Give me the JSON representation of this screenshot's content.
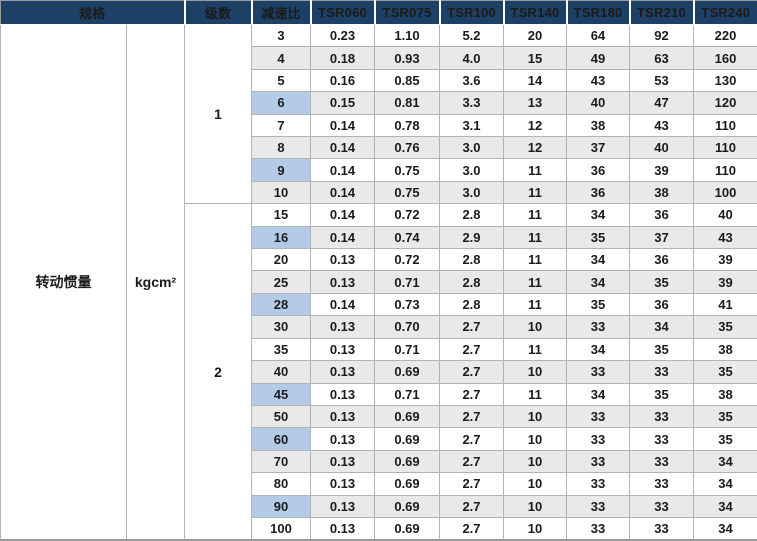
{
  "colors": {
    "header_bg": "#1d4166",
    "header_text": "#ffffff",
    "stripe_gray": "#e9e9e9",
    "highlight_blue": "#b4cbe7",
    "grid_line": "#b3b3b3",
    "body_text": "#1b1b1b"
  },
  "table": {
    "header": {
      "spec_label": "规格",
      "stage_label": "级数",
      "ratio_label": "减速比",
      "models": [
        "TSR060",
        "TSR075",
        "TSR100",
        "TSR140",
        "TSR180",
        "TSR210",
        "TSR240"
      ]
    },
    "spec_name": "转动惯量",
    "spec_unit": "kgcm²",
    "stages": [
      {
        "stage": "1",
        "rows": [
          {
            "ratio": "3",
            "highlight": false,
            "values": [
              "0.23",
              "1.10",
              "5.2",
              "20",
              "64",
              "92",
              "220"
            ]
          },
          {
            "ratio": "4",
            "highlight": false,
            "values": [
              "0.18",
              "0.93",
              "4.0",
              "15",
              "49",
              "63",
              "160"
            ]
          },
          {
            "ratio": "5",
            "highlight": false,
            "values": [
              "0.16",
              "0.85",
              "3.6",
              "14",
              "43",
              "53",
              "130"
            ]
          },
          {
            "ratio": "6",
            "highlight": true,
            "values": [
              "0.15",
              "0.81",
              "3.3",
              "13",
              "40",
              "47",
              "120"
            ]
          },
          {
            "ratio": "7",
            "highlight": false,
            "values": [
              "0.14",
              "0.78",
              "3.1",
              "12",
              "38",
              "43",
              "110"
            ]
          },
          {
            "ratio": "8",
            "highlight": false,
            "values": [
              "0.14",
              "0.76",
              "3.0",
              "12",
              "37",
              "40",
              "110"
            ]
          },
          {
            "ratio": "9",
            "highlight": true,
            "values": [
              "0.14",
              "0.75",
              "3.0",
              "11",
              "36",
              "39",
              "110"
            ]
          },
          {
            "ratio": "10",
            "highlight": false,
            "values": [
              "0.14",
              "0.75",
              "3.0",
              "11",
              "36",
              "38",
              "100"
            ]
          }
        ]
      },
      {
        "stage": "2",
        "rows": [
          {
            "ratio": "15",
            "highlight": false,
            "values": [
              "0.14",
              "0.72",
              "2.8",
              "11",
              "34",
              "36",
              "40"
            ]
          },
          {
            "ratio": "16",
            "highlight": true,
            "values": [
              "0.14",
              "0.74",
              "2.9",
              "11",
              "35",
              "37",
              "43"
            ]
          },
          {
            "ratio": "20",
            "highlight": false,
            "values": [
              "0.13",
              "0.72",
              "2.8",
              "11",
              "34",
              "36",
              "39"
            ]
          },
          {
            "ratio": "25",
            "highlight": false,
            "values": [
              "0.13",
              "0.71",
              "2.8",
              "11",
              "34",
              "35",
              "39"
            ]
          },
          {
            "ratio": "28",
            "highlight": true,
            "values": [
              "0.14",
              "0.73",
              "2.8",
              "11",
              "35",
              "36",
              "41"
            ]
          },
          {
            "ratio": "30",
            "highlight": false,
            "values": [
              "0.13",
              "0.70",
              "2.7",
              "10",
              "33",
              "34",
              "35"
            ]
          },
          {
            "ratio": "35",
            "highlight": false,
            "values": [
              "0.13",
              "0.71",
              "2.7",
              "11",
              "34",
              "35",
              "38"
            ]
          },
          {
            "ratio": "40",
            "highlight": false,
            "values": [
              "0.13",
              "0.69",
              "2.7",
              "10",
              "33",
              "33",
              "35"
            ]
          },
          {
            "ratio": "45",
            "highlight": true,
            "values": [
              "0.13",
              "0.71",
              "2.7",
              "11",
              "34",
              "35",
              "38"
            ]
          },
          {
            "ratio": "50",
            "highlight": false,
            "values": [
              "0.13",
              "0.69",
              "2.7",
              "10",
              "33",
              "33",
              "35"
            ]
          },
          {
            "ratio": "60",
            "highlight": true,
            "values": [
              "0.13",
              "0.69",
              "2.7",
              "10",
              "33",
              "33",
              "35"
            ]
          },
          {
            "ratio": "70",
            "highlight": false,
            "values": [
              "0.13",
              "0.69",
              "2.7",
              "10",
              "33",
              "33",
              "34"
            ]
          },
          {
            "ratio": "80",
            "highlight": false,
            "values": [
              "0.13",
              "0.69",
              "2.7",
              "10",
              "33",
              "33",
              "34"
            ]
          },
          {
            "ratio": "90",
            "highlight": true,
            "values": [
              "0.13",
              "0.69",
              "2.7",
              "10",
              "33",
              "33",
              "34"
            ]
          },
          {
            "ratio": "100",
            "highlight": false,
            "values": [
              "0.13",
              "0.69",
              "2.7",
              "10",
              "33",
              "33",
              "34"
            ]
          }
        ]
      }
    ]
  }
}
